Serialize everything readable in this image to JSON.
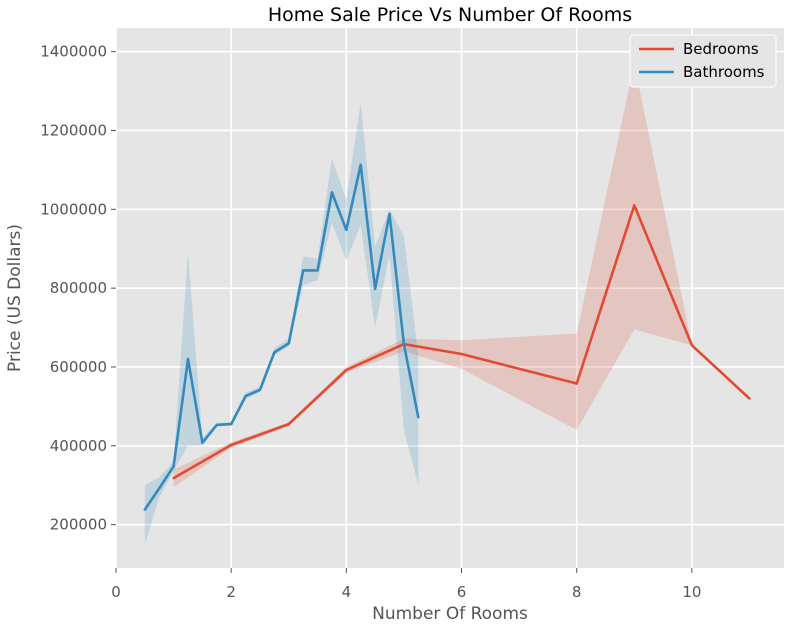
{
  "chart_data": {
    "type": "line",
    "title": "Home Sale Price Vs Number Of Rooms",
    "xlabel": "Number Of Rooms",
    "ylabel": "Price (US Dollars)",
    "xlim": [
      0,
      11.6
    ],
    "ylim": [
      90000,
      1460000
    ],
    "xticks": [
      0,
      2,
      4,
      6,
      8,
      10
    ],
    "yticks": [
      200000,
      400000,
      600000,
      800000,
      1000000,
      1200000,
      1400000
    ],
    "grid": true,
    "legend": "top-right",
    "series": [
      {
        "name": "Bedrooms",
        "color": "#E24A33",
        "x": [
          1,
          2,
          3,
          4,
          5,
          6,
          8,
          9,
          10,
          11
        ],
        "y": [
          318000,
          402000,
          455000,
          592000,
          658000,
          633000,
          558000,
          1010000,
          655000,
          520000
        ],
        "lower": [
          295000,
          395000,
          450000,
          585000,
          640000,
          595000,
          440000,
          695000,
          655000,
          520000
        ],
        "upper": [
          340000,
          409000,
          460000,
          600000,
          672000,
          668000,
          685000,
          1370000,
          655000,
          520000
        ]
      },
      {
        "name": "Bathrooms",
        "color": "#348ABD",
        "x": [
          0.5,
          0.75,
          1,
          1.25,
          1.5,
          1.75,
          2,
          2.25,
          2.5,
          2.75,
          3,
          3.25,
          3.5,
          3.75,
          4,
          4.25,
          4.5,
          4.75,
          5,
          5.25
        ],
        "y": [
          238000,
          292000,
          348000,
          620000,
          408000,
          453000,
          455000,
          526000,
          542000,
          637000,
          660000,
          845000,
          845000,
          1043000,
          948000,
          1113000,
          798000,
          988000,
          658000,
          472000
        ],
        "lower": [
          150000,
          268000,
          335000,
          400000,
          400000,
          450000,
          452000,
          518000,
          536000,
          630000,
          652000,
          808000,
          820000,
          965000,
          870000,
          960000,
          700000,
          885000,
          440000,
          300000
        ],
        "upper": [
          300000,
          320000,
          360000,
          890000,
          420000,
          458000,
          460000,
          535000,
          550000,
          648000,
          672000,
          880000,
          875000,
          1130000,
          1025000,
          1270000,
          905000,
          1000000,
          932000,
          630000
        ]
      }
    ]
  }
}
